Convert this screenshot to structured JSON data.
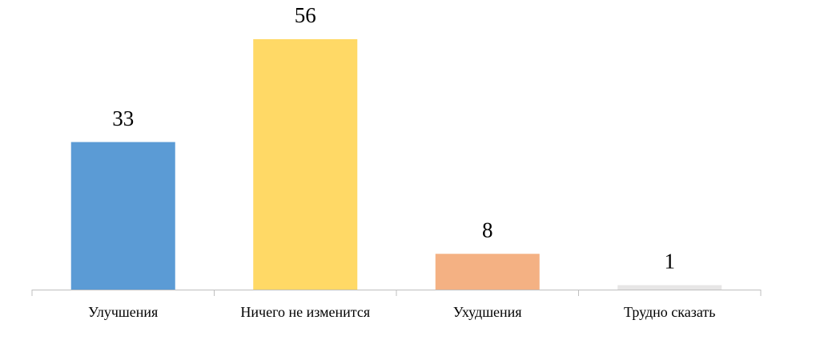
{
  "chart_data": {
    "type": "bar",
    "categories": [
      "Улучшения",
      "Ничего не изменится",
      "Ухудшения",
      "Трудно сказать"
    ],
    "values": [
      33,
      56,
      8,
      1
    ],
    "colors": [
      "#5b9bd5",
      "#ffd966",
      "#f4b183",
      "#e7e6e6"
    ]
  }
}
